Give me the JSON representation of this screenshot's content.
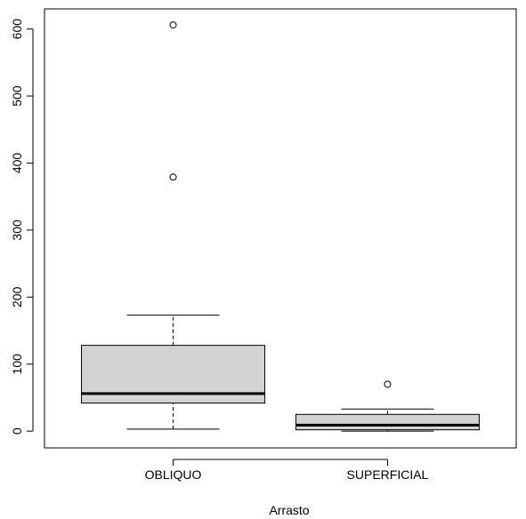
{
  "chart_data": {
    "type": "boxplot",
    "xlabel": "Arrasto",
    "ylabel": "",
    "ylim": [
      -25,
      630
    ],
    "yticks": [
      0,
      100,
      200,
      300,
      400,
      500,
      600
    ],
    "categories": [
      "OBLIQUO",
      "SUPERFICIAL"
    ],
    "boxes": [
      {
        "name": "OBLIQUO",
        "whisker_low": 3,
        "q1": 42,
        "median": 56,
        "q3": 128,
        "whisker_high": 173,
        "outliers": [
          379,
          606
        ]
      },
      {
        "name": "SUPERFICIAL",
        "whisker_low": 0,
        "q1": 2,
        "median": 9,
        "q3": 25,
        "whisker_high": 33,
        "outliers": [
          70
        ]
      }
    ],
    "box_fill": "#d3d3d3",
    "grid": false
  }
}
